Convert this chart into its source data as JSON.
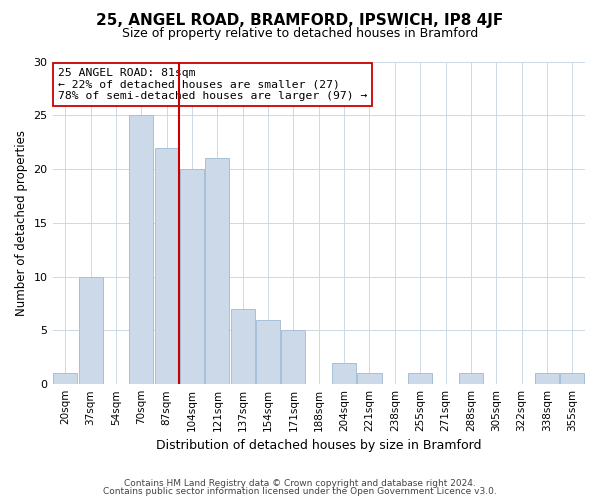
{
  "title": "25, ANGEL ROAD, BRAMFORD, IPSWICH, IP8 4JF",
  "subtitle": "Size of property relative to detached houses in Bramford",
  "xlabel": "Distribution of detached houses by size in Bramford",
  "ylabel": "Number of detached properties",
  "footer_lines": [
    "Contains HM Land Registry data © Crown copyright and database right 2024.",
    "Contains public sector information licensed under the Open Government Licence v3.0."
  ],
  "bin_labels": [
    "20sqm",
    "37sqm",
    "54sqm",
    "70sqm",
    "87sqm",
    "104sqm",
    "121sqm",
    "137sqm",
    "154sqm",
    "171sqm",
    "188sqm",
    "204sqm",
    "221sqm",
    "238sqm",
    "255sqm",
    "271sqm",
    "288sqm",
    "305sqm",
    "322sqm",
    "338sqm",
    "355sqm"
  ],
  "bar_heights": [
    1,
    10,
    0,
    25,
    22,
    20,
    21,
    7,
    6,
    5,
    0,
    2,
    1,
    0,
    1,
    0,
    1,
    0,
    0,
    1,
    1
  ],
  "bar_color": "#ccd9e8",
  "bar_edge_color": "#a8c0d8",
  "highlight_line_color": "#cc0000",
  "annotation_title": "25 ANGEL ROAD: 81sqm",
  "annotation_line1": "← 22% of detached houses are smaller (27)",
  "annotation_line2": "78% of semi-detached houses are larger (97) →",
  "annotation_box_edge": "#cc0000",
  "ylim": [
    0,
    30
  ],
  "yticks": [
    0,
    5,
    10,
    15,
    20,
    25,
    30
  ],
  "background_color": "#ffffff",
  "grid_color": "#ccd8e4"
}
